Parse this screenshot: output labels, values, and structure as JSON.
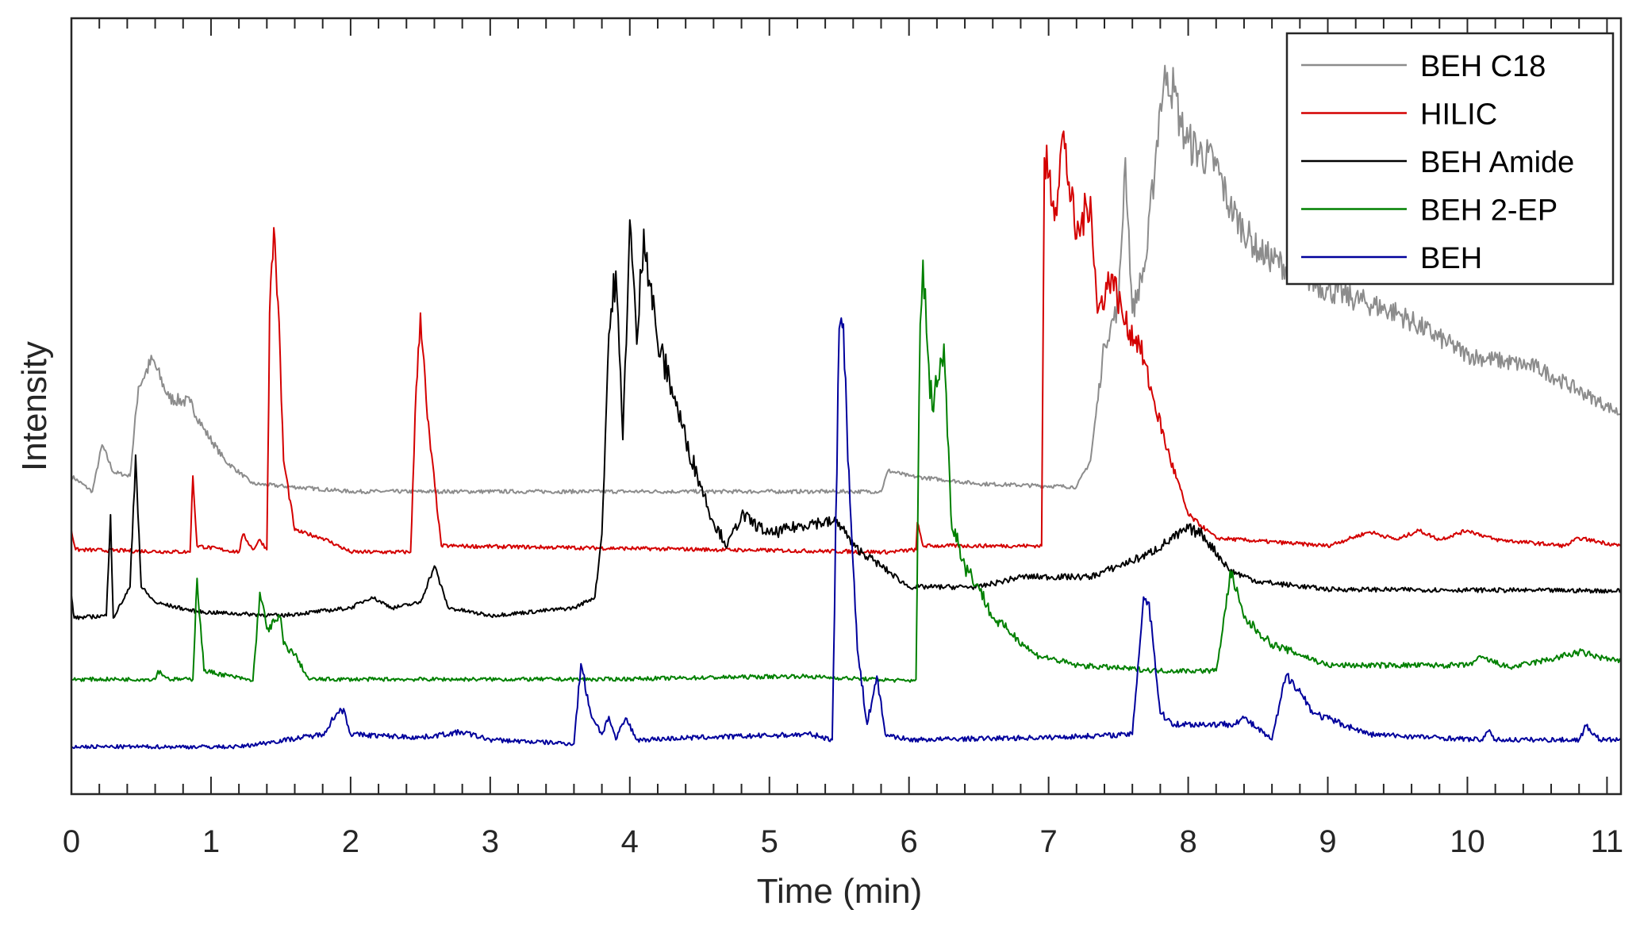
{
  "chart_data": {
    "type": "line",
    "title": "",
    "xlabel": "Time (min)",
    "ylabel": "Intensity",
    "xlim": [
      0,
      11.1
    ],
    "ylim": [
      0,
      100
    ],
    "xticks": [
      0,
      1,
      2,
      3,
      4,
      5,
      6,
      7,
      8,
      9,
      10,
      11
    ],
    "xtick_labels": [
      "0",
      "1",
      "2",
      "3",
      "4",
      "5",
      "6",
      "7",
      "8",
      "9",
      "10",
      "11"
    ],
    "yticks": [],
    "grid": false,
    "legend_position": "top-right",
    "series": [
      {
        "name": "BEH C18",
        "color": "#8c8c8c",
        "points": [
          [
            0,
            41
          ],
          [
            0.15,
            39
          ],
          [
            0.22,
            45
          ],
          [
            0.3,
            41.5
          ],
          [
            0.42,
            41
          ],
          [
            0.48,
            52.5
          ],
          [
            0.58,
            56
          ],
          [
            0.7,
            51
          ],
          [
            0.85,
            50.5
          ],
          [
            0.95,
            47
          ],
          [
            1.1,
            43
          ],
          [
            1.3,
            40
          ],
          [
            2,
            39
          ],
          [
            5.8,
            39
          ],
          [
            5.85,
            41.7
          ],
          [
            6,
            41
          ],
          [
            6.5,
            40
          ],
          [
            7.2,
            39.6
          ],
          [
            7.3,
            43
          ],
          [
            7.4,
            58
          ],
          [
            7.5,
            63
          ],
          [
            7.55,
            82
          ],
          [
            7.6,
            62
          ],
          [
            7.7,
            69
          ],
          [
            7.8,
            89
          ],
          [
            7.85,
            93
          ],
          [
            7.9,
            90.5
          ],
          [
            7.95,
            86
          ],
          [
            8,
            84
          ],
          [
            8.2,
            81
          ],
          [
            8.3,
            75.6
          ],
          [
            8.5,
            70
          ],
          [
            9,
            65
          ],
          [
            9.5,
            62
          ],
          [
            10,
            56.6
          ],
          [
            10.5,
            55
          ],
          [
            11,
            50
          ],
          [
            11.1,
            49
          ]
        ]
      },
      {
        "name": "HILIC",
        "color": "#d40000",
        "points": [
          [
            0,
            34
          ],
          [
            0.03,
            31.5
          ],
          [
            0.85,
            31.2
          ],
          [
            0.87,
            41
          ],
          [
            0.9,
            32
          ],
          [
            1.2,
            31.2
          ],
          [
            1.23,
            33.5
          ],
          [
            1.3,
            31.5
          ],
          [
            1.35,
            32.8
          ],
          [
            1.4,
            31.5
          ],
          [
            1.42,
            62
          ],
          [
            1.45,
            73
          ],
          [
            1.48,
            63.5
          ],
          [
            1.52,
            43
          ],
          [
            1.6,
            34
          ],
          [
            1.8,
            33
          ],
          [
            2,
            31.2
          ],
          [
            2.43,
            31.2
          ],
          [
            2.47,
            52.5
          ],
          [
            2.5,
            62
          ],
          [
            2.55,
            48.4
          ],
          [
            2.65,
            32
          ],
          [
            5.85,
            31.2
          ],
          [
            6.05,
            31.5
          ],
          [
            6.06,
            35
          ],
          [
            6.1,
            32
          ],
          [
            6.95,
            32
          ],
          [
            6.97,
            82
          ],
          [
            7.05,
            75.6
          ],
          [
            7.1,
            85
          ],
          [
            7.2,
            71.6
          ],
          [
            7.3,
            77
          ],
          [
            7.35,
            62
          ],
          [
            7.45,
            67
          ],
          [
            7.55,
            60.6
          ],
          [
            7.65,
            58
          ],
          [
            7.75,
            51
          ],
          [
            7.85,
            44.4
          ],
          [
            8,
            36
          ],
          [
            8.2,
            33
          ],
          [
            9,
            32
          ],
          [
            9.3,
            33.8
          ],
          [
            9.5,
            32.8
          ],
          [
            9.65,
            34
          ],
          [
            9.8,
            32.8
          ],
          [
            10,
            34
          ],
          [
            10.2,
            32.8
          ],
          [
            10.7,
            32
          ],
          [
            10.8,
            33
          ],
          [
            11.1,
            32
          ]
        ]
      },
      {
        "name": "BEH Amide",
        "color": "#000000",
        "points": [
          [
            0,
            25.6
          ],
          [
            0.02,
            22.7
          ],
          [
            0.25,
            23
          ],
          [
            0.28,
            36
          ],
          [
            0.3,
            22.7
          ],
          [
            0.42,
            26.7
          ],
          [
            0.46,
            43.7
          ],
          [
            0.5,
            26.7
          ],
          [
            0.6,
            24.7
          ],
          [
            0.9,
            23.5
          ],
          [
            1.5,
            23
          ],
          [
            2,
            24
          ],
          [
            2.15,
            25.4
          ],
          [
            2.3,
            24
          ],
          [
            2.5,
            24.7
          ],
          [
            2.6,
            29.4
          ],
          [
            2.7,
            24
          ],
          [
            3,
            23
          ],
          [
            3.6,
            24
          ],
          [
            3.75,
            25.4
          ],
          [
            3.8,
            33.5
          ],
          [
            3.85,
            59.3
          ],
          [
            3.9,
            67.4
          ],
          [
            3.95,
            45.7
          ],
          [
            4,
            74
          ],
          [
            4.05,
            58
          ],
          [
            4.1,
            72.8
          ],
          [
            4.2,
            58
          ],
          [
            4.3,
            52.5
          ],
          [
            4.4,
            45.7
          ],
          [
            4.5,
            40.3
          ],
          [
            4.6,
            35
          ],
          [
            4.7,
            32
          ],
          [
            4.8,
            36
          ],
          [
            5,
            33.5
          ],
          [
            5.3,
            35
          ],
          [
            5.5,
            35
          ],
          [
            5.6,
            32
          ],
          [
            5.8,
            29.4
          ],
          [
            6,
            26.7
          ],
          [
            6.5,
            26.7
          ],
          [
            6.8,
            28
          ],
          [
            7.3,
            28
          ],
          [
            7.5,
            29.4
          ],
          [
            7.7,
            30.8
          ],
          [
            8,
            34.2
          ],
          [
            8.1,
            33.5
          ],
          [
            8.3,
            28.8
          ],
          [
            8.5,
            27.4
          ],
          [
            9,
            26.4
          ],
          [
            11.1,
            26.2
          ]
        ]
      },
      {
        "name": "BEH 2-EP",
        "color": "#008000",
        "points": [
          [
            0,
            14.8
          ],
          [
            0.6,
            14.8
          ],
          [
            0.62,
            15.9
          ],
          [
            0.7,
            14.8
          ],
          [
            0.87,
            14.8
          ],
          [
            0.9,
            27.8
          ],
          [
            0.95,
            15.9
          ],
          [
            1.3,
            14.6
          ],
          [
            1.35,
            26
          ],
          [
            1.4,
            21.3
          ],
          [
            1.5,
            22.7
          ],
          [
            1.52,
            19.3
          ],
          [
            1.6,
            18
          ],
          [
            1.7,
            14.8
          ],
          [
            3.8,
            14.8
          ],
          [
            5.2,
            15.2
          ],
          [
            6,
            14.6
          ],
          [
            6.05,
            14.8
          ],
          [
            6.08,
            60.6
          ],
          [
            6.1,
            68.8
          ],
          [
            6.15,
            51
          ],
          [
            6.2,
            52.5
          ],
          [
            6.25,
            58
          ],
          [
            6.3,
            36
          ],
          [
            6.4,
            29.4
          ],
          [
            6.5,
            26.7
          ],
          [
            6.6,
            22.7
          ],
          [
            6.7,
            21.3
          ],
          [
            6.9,
            18
          ],
          [
            7.2,
            16.6
          ],
          [
            7.8,
            15.9
          ],
          [
            8.2,
            15.9
          ],
          [
            8.27,
            24
          ],
          [
            8.3,
            28.8
          ],
          [
            8.4,
            22.7
          ],
          [
            8.6,
            19.3
          ],
          [
            8.8,
            18
          ],
          [
            9,
            16.6
          ],
          [
            10,
            16.6
          ],
          [
            10.1,
            17.6
          ],
          [
            10.3,
            16.3
          ],
          [
            10.6,
            17.4
          ],
          [
            10.8,
            18.3
          ],
          [
            11.1,
            17
          ]
        ]
      },
      {
        "name": "BEH",
        "color": "#00009c",
        "points": [
          [
            0,
            6.1
          ],
          [
            1.2,
            6.1
          ],
          [
            1.8,
            7.7
          ],
          [
            1.9,
            10.4
          ],
          [
            1.95,
            11
          ],
          [
            2,
            7.7
          ],
          [
            2.5,
            7.3
          ],
          [
            2.8,
            8
          ],
          [
            3,
            7
          ],
          [
            3.6,
            6.5
          ],
          [
            3.65,
            16.8
          ],
          [
            3.72,
            10.4
          ],
          [
            3.8,
            7.7
          ],
          [
            3.85,
            10
          ],
          [
            3.9,
            7
          ],
          [
            3.97,
            9.8
          ],
          [
            4.05,
            7
          ],
          [
            4.5,
            7.3
          ],
          [
            5.3,
            7.7
          ],
          [
            5.45,
            7
          ],
          [
            5.5,
            60
          ],
          [
            5.53,
            60.6
          ],
          [
            5.57,
            41.7
          ],
          [
            5.6,
            29.4
          ],
          [
            5.63,
            18.6
          ],
          [
            5.7,
            9
          ],
          [
            5.77,
            15.2
          ],
          [
            5.83,
            7.7
          ],
          [
            6,
            7
          ],
          [
            7,
            7.3
          ],
          [
            7.6,
            7.7
          ],
          [
            7.68,
            25.4
          ],
          [
            7.72,
            24.7
          ],
          [
            7.8,
            10.4
          ],
          [
            7.9,
            9
          ],
          [
            8.3,
            9
          ],
          [
            8.4,
            9.8
          ],
          [
            8.6,
            7
          ],
          [
            8.7,
            15.2
          ],
          [
            8.75,
            14.6
          ],
          [
            8.9,
            10.4
          ],
          [
            9.3,
            7.7
          ],
          [
            10.1,
            7
          ],
          [
            10.15,
            8.1
          ],
          [
            10.2,
            7
          ],
          [
            10.8,
            7
          ],
          [
            10.85,
            8.8
          ],
          [
            10.95,
            7
          ],
          [
            11.1,
            7
          ]
        ]
      }
    ]
  }
}
